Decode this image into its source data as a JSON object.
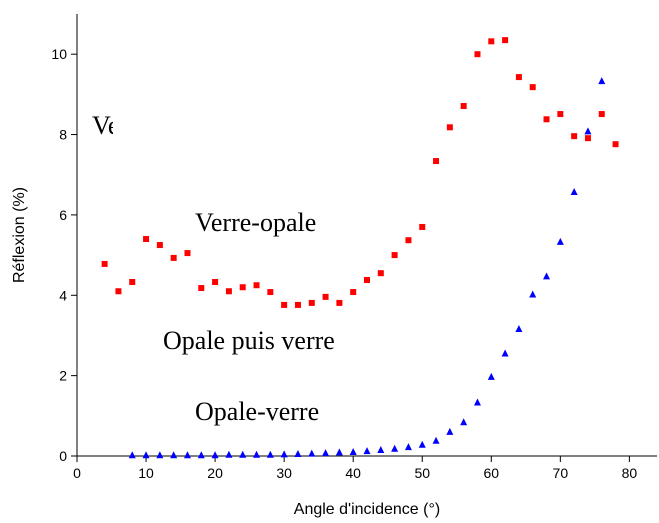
{
  "chart_data": {
    "type": "scatter",
    "xlabel": "Angle d'incidence (°)",
    "ylabel": "Réflexion (%)",
    "xlim": [
      0,
      84
    ],
    "ylim": [
      0,
      11
    ],
    "xticks": [
      0,
      10,
      20,
      30,
      40,
      50,
      60,
      70,
      80
    ],
    "yticks": [
      0,
      2,
      4,
      6,
      8,
      10
    ],
    "annotations": [
      "Ve",
      "Verre-opale",
      "Opale puis verre",
      "Opale-verre"
    ],
    "series": [
      {
        "marker": "square",
        "color": "#ff0000",
        "x": [
          4,
          6,
          8,
          10,
          12,
          14,
          16,
          18,
          20,
          22,
          24,
          26,
          28,
          30,
          32,
          34,
          36,
          38,
          40,
          42,
          44,
          46,
          48,
          50,
          52,
          54,
          56,
          58,
          60,
          62,
          64,
          66,
          68,
          70,
          72,
          74,
          76,
          78
        ],
        "values": [
          4.78,
          4.1,
          4.33,
          5.4,
          5.25,
          4.93,
          5.05,
          4.18,
          4.33,
          4.1,
          4.2,
          4.25,
          4.08,
          3.76,
          3.76,
          3.81,
          3.96,
          3.81,
          4.08,
          4.38,
          4.55,
          5.0,
          5.37,
          5.7,
          7.34,
          8.18,
          8.71,
          10.0,
          10.32,
          10.35,
          9.43,
          9.18,
          8.38,
          8.51,
          7.96,
          7.91,
          8.51,
          7.76
        ]
      },
      {
        "marker": "triangle",
        "color": "#0000ff",
        "x": [
          8,
          10,
          12,
          14,
          16,
          18,
          20,
          22,
          24,
          26,
          28,
          30,
          32,
          34,
          36,
          38,
          40,
          42,
          44,
          46,
          48,
          50,
          52,
          54,
          56,
          58,
          60,
          62,
          64,
          66,
          68,
          70,
          72,
          74,
          76
        ],
        "values": [
          0.02,
          0.02,
          0.02,
          0.02,
          0.02,
          0.02,
          0.02,
          0.03,
          0.03,
          0.03,
          0.03,
          0.04,
          0.05,
          0.06,
          0.07,
          0.09,
          0.1,
          0.12,
          0.15,
          0.18,
          0.22,
          0.28,
          0.38,
          0.6,
          0.84,
          1.33,
          1.97,
          2.55,
          3.16,
          4.02,
          4.47,
          5.33,
          6.57,
          8.08,
          9.33
        ]
      }
    ]
  }
}
